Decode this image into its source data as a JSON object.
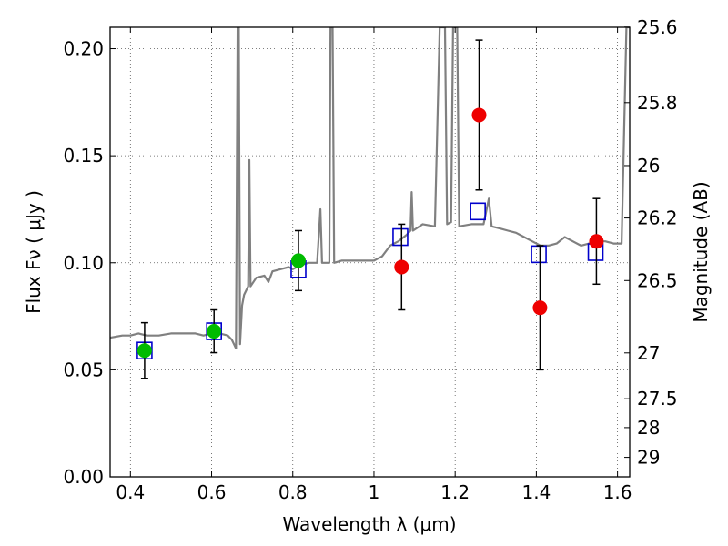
{
  "chart_data": {
    "type": "scatter",
    "title": "",
    "xlabel": "Wavelength  λ (μm)",
    "ylabel": "Flux  Fν  ( μJy )",
    "y2label": "Magnitude (AB)",
    "xlim": [
      0.35,
      1.63
    ],
    "ylim": [
      0.0,
      0.21
    ],
    "x_ticks": [
      0.4,
      0.6,
      0.8,
      1.0,
      1.2,
      1.4,
      1.6
    ],
    "x_tick_labels": [
      "0.4",
      "0.6",
      "0.8",
      "1",
      "1.2",
      "1.4",
      "1.6"
    ],
    "y_ticks": [
      0.0,
      0.05,
      0.1,
      0.15,
      0.2
    ],
    "y_tick_labels": [
      "0.00",
      "0.05",
      "0.10",
      "0.15",
      "0.20"
    ],
    "y2_ticks": [
      {
        "label": "25.6",
        "flux": 0.2101
      },
      {
        "label": "25.8",
        "flux": 0.1748
      },
      {
        "label": "26",
        "flux": 0.1454
      },
      {
        "label": "26.2",
        "flux": 0.1209
      },
      {
        "label": "26.5",
        "flux": 0.0917
      },
      {
        "label": "27",
        "flux": 0.0579
      },
      {
        "label": "27.5",
        "flux": 0.0365
      },
      {
        "label": "28",
        "flux": 0.023
      },
      {
        "label": "29",
        "flux": 0.0091
      }
    ],
    "grid": true,
    "series": [
      {
        "kind": "model_spectrum",
        "color": "#808080",
        "points": [
          [
            0.35,
            0.065
          ],
          [
            0.38,
            0.066
          ],
          [
            0.4,
            0.066
          ],
          [
            0.42,
            0.067
          ],
          [
            0.44,
            0.066
          ],
          [
            0.47,
            0.066
          ],
          [
            0.5,
            0.067
          ],
          [
            0.53,
            0.067
          ],
          [
            0.56,
            0.067
          ],
          [
            0.58,
            0.066
          ],
          [
            0.6,
            0.067
          ],
          [
            0.62,
            0.067
          ],
          [
            0.64,
            0.066
          ],
          [
            0.65,
            0.064
          ],
          [
            0.655,
            0.062
          ],
          [
            0.66,
            0.06
          ],
          [
            0.664,
            0.21
          ],
          [
            0.667,
            0.21
          ],
          [
            0.67,
            0.062
          ],
          [
            0.675,
            0.08
          ],
          [
            0.68,
            0.085
          ],
          [
            0.69,
            0.089
          ],
          [
            0.693,
            0.148
          ],
          [
            0.696,
            0.089
          ],
          [
            0.71,
            0.093
          ],
          [
            0.73,
            0.094
          ],
          [
            0.74,
            0.091
          ],
          [
            0.75,
            0.096
          ],
          [
            0.77,
            0.097
          ],
          [
            0.79,
            0.098
          ],
          [
            0.8,
            0.097
          ],
          [
            0.82,
            0.099
          ],
          [
            0.84,
            0.1
          ],
          [
            0.86,
            0.1
          ],
          [
            0.868,
            0.125
          ],
          [
            0.872,
            0.1
          ],
          [
            0.89,
            0.1
          ],
          [
            0.893,
            0.21
          ],
          [
            0.898,
            0.21
          ],
          [
            0.902,
            0.1
          ],
          [
            0.92,
            0.101
          ],
          [
            0.95,
            0.101
          ],
          [
            0.98,
            0.101
          ],
          [
            1.0,
            0.101
          ],
          [
            1.02,
            0.103
          ],
          [
            1.04,
            0.108
          ],
          [
            1.06,
            0.11
          ],
          [
            1.08,
            0.113
          ],
          [
            1.09,
            0.115
          ],
          [
            1.093,
            0.133
          ],
          [
            1.096,
            0.115
          ],
          [
            1.12,
            0.118
          ],
          [
            1.15,
            0.117
          ],
          [
            1.162,
            0.21
          ],
          [
            1.175,
            0.21
          ],
          [
            1.18,
            0.118
          ],
          [
            1.19,
            0.119
          ],
          [
            1.195,
            0.21
          ],
          [
            1.205,
            0.21
          ],
          [
            1.21,
            0.117
          ],
          [
            1.24,
            0.118
          ],
          [
            1.27,
            0.118
          ],
          [
            1.283,
            0.13
          ],
          [
            1.29,
            0.117
          ],
          [
            1.31,
            0.116
          ],
          [
            1.33,
            0.115
          ],
          [
            1.35,
            0.114
          ],
          [
            1.37,
            0.112
          ],
          [
            1.39,
            0.11
          ],
          [
            1.41,
            0.108
          ],
          [
            1.43,
            0.108
          ],
          [
            1.45,
            0.109
          ],
          [
            1.47,
            0.112
          ],
          [
            1.49,
            0.11
          ],
          [
            1.51,
            0.108
          ],
          [
            1.53,
            0.109
          ],
          [
            1.55,
            0.11
          ],
          [
            1.57,
            0.11
          ],
          [
            1.59,
            0.109
          ],
          [
            1.61,
            0.109
          ],
          [
            1.622,
            0.21
          ],
          [
            1.63,
            0.21
          ]
        ]
      },
      {
        "kind": "model_bandpass",
        "marker": "open-square",
        "color": "#0000cc",
        "x": [
          0.435,
          0.606,
          0.814,
          1.065,
          1.256,
          1.406,
          1.546
        ],
        "y": [
          0.059,
          0.068,
          0.097,
          0.112,
          0.124,
          0.104,
          0.105
        ]
      },
      {
        "kind": "observed_optical",
        "marker": "filled-circle",
        "color": "#00bb00",
        "x": [
          0.435,
          0.606,
          0.814
        ],
        "y": [
          0.059,
          0.068,
          0.101
        ],
        "yerr": [
          0.013,
          0.01,
          0.014
        ]
      },
      {
        "kind": "observed_nir",
        "marker": "filled-circle",
        "color": "#ee0000",
        "x": [
          1.068,
          1.259,
          1.409,
          1.548
        ],
        "y": [
          0.098,
          0.169,
          0.079,
          0.11
        ],
        "yerr": [
          0.02,
          0.035,
          0.029,
          0.02
        ]
      }
    ]
  }
}
